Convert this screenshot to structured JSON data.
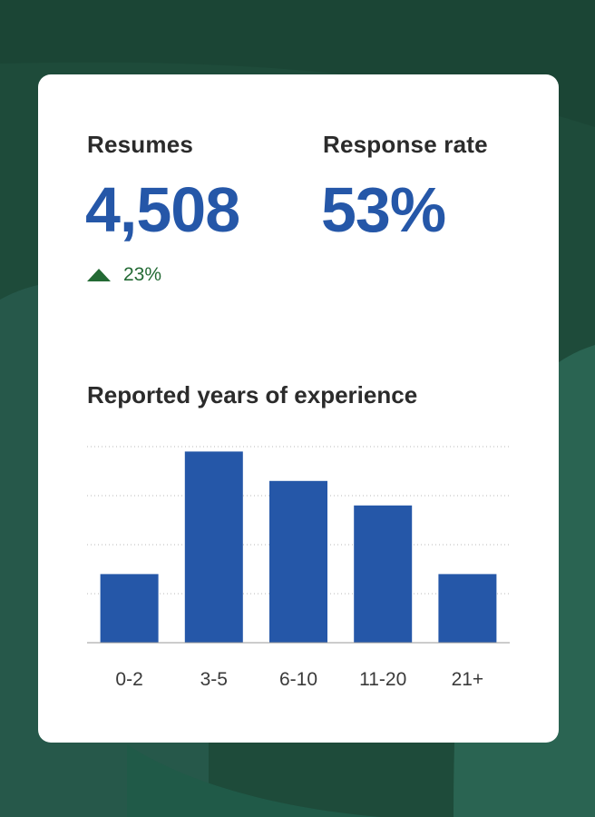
{
  "colors": {
    "background": "#1e4b3a",
    "card": "#ffffff",
    "accent": "#2557a8",
    "positive": "#236a34",
    "text": "#2b2b2b"
  },
  "metrics": {
    "resumes": {
      "label": "Resumes",
      "value": "4,508",
      "change": "23%",
      "change_icon": "triangle-up-icon"
    },
    "response_rate": {
      "label": "Response rate",
      "value": "53%"
    }
  },
  "chart_data": {
    "type": "bar",
    "title": "Reported years of experience",
    "categories": [
      "0-2",
      "3-5",
      "6-10",
      "11-20",
      "21+"
    ],
    "values": [
      14,
      39,
      33,
      28,
      14
    ],
    "ylim": [
      0,
      40
    ],
    "grid": true,
    "xlabel": "",
    "ylabel": ""
  }
}
